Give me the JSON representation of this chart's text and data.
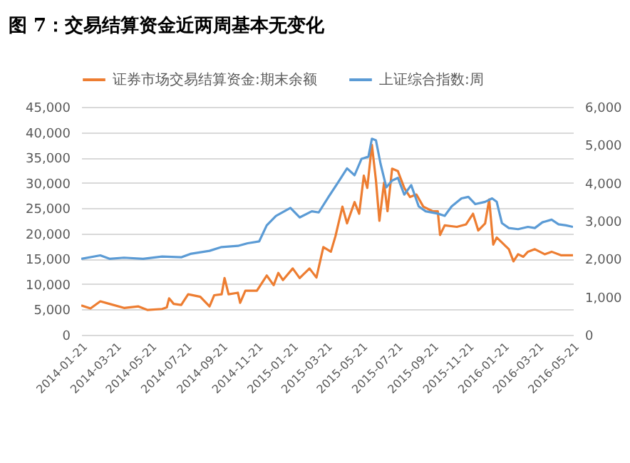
{
  "chart_data": {
    "type": "line",
    "title": "图 7：交易结算资金近两周基本无变化",
    "legend": "top",
    "grid": "y",
    "xlim": [
      "2014-01-21",
      "2016-05-21"
    ],
    "xticks": [
      "2014-01-21",
      "2014-03-21",
      "2014-05-21",
      "2014-07-21",
      "2014-09-21",
      "2014-11-21",
      "2015-01-21",
      "2015-03-21",
      "2015-05-21",
      "2015-07-21",
      "2015-09-21",
      "2015-11-21",
      "2016-01-21",
      "2016-03-21",
      "2016-05-21"
    ],
    "ylim": [
      0,
      45000
    ],
    "yticks": [
      0,
      {
        "value": 5000,
        "label": "5,000"
      },
      {
        "value": 10000,
        "label": "10,000"
      },
      {
        "value": 15000,
        "label": "15,000"
      },
      {
        "value": 20000,
        "label": "20,000"
      },
      {
        "value": 25000,
        "label": "25,000"
      },
      {
        "value": 30000,
        "label": "30,000"
      },
      {
        "value": 35000,
        "label": "35,000"
      },
      {
        "value": 40000,
        "label": "40,000"
      },
      {
        "value": 45000,
        "label": "45,000"
      }
    ],
    "y2lim": [
      0,
      6000
    ],
    "y2ticks": [
      0,
      {
        "value": 1000,
        "label": "1,000"
      },
      {
        "value": 2000,
        "label": "2,000"
      },
      {
        "value": 3000,
        "label": "3,000"
      },
      {
        "value": 4000,
        "label": "4,000"
      },
      {
        "value": 5000,
        "label": "5,000"
      },
      {
        "value": 6000,
        "label": "6,000"
      }
    ],
    "series": [
      {
        "name": "证券市场交易结算资金:期末余额",
        "color": "#ed7d31",
        "x": [
          "2014-01-21",
          "2014-02-06",
          "2014-02-23",
          "2014-03-11",
          "2014-04-05",
          "2014-04-30",
          "2014-05-16",
          "2014-06-10",
          "2014-06-18",
          "2014-06-22",
          "2014-06-30",
          "2014-07-13",
          "2014-07-25",
          "2014-08-15",
          "2014-08-31",
          "2014-09-08",
          "2014-09-21",
          "2014-09-26",
          "2014-10-03",
          "2014-10-19",
          "2014-10-23",
          "2014-11-01",
          "2014-11-21",
          "2014-12-08",
          "2014-12-20",
          "2014-12-28",
          "2015-01-05",
          "2015-01-22",
          "2015-02-03",
          "2015-02-20",
          "2015-03-04",
          "2015-03-16",
          "2015-03-29",
          "2015-04-06",
          "2015-04-18",
          "2015-04-26",
          "2015-05-09",
          "2015-05-17",
          "2015-05-25",
          "2015-05-31",
          "2015-06-08",
          "2015-06-15",
          "2015-06-21",
          "2015-06-29",
          "2015-07-05",
          "2015-07-13",
          "2015-07-23",
          "2015-08-03",
          "2015-08-13",
          "2015-08-24",
          "2015-09-05",
          "2015-09-21",
          "2015-09-30",
          "2015-10-04",
          "2015-10-12",
          "2015-11-02",
          "2015-11-18",
          "2015-11-30",
          "2015-12-09",
          "2015-12-21",
          "2015-12-28",
          "2016-01-04",
          "2016-01-10",
          "2016-01-31",
          "2016-02-08",
          "2016-02-16",
          "2016-02-25",
          "2016-03-04",
          "2016-03-16",
          "2016-04-02",
          "2016-04-14",
          "2016-04-30",
          "2016-05-21"
        ],
        "values": [
          5800,
          5200,
          6600,
          6100,
          5300,
          5600,
          4900,
          5100,
          5400,
          7200,
          6100,
          5900,
          8000,
          7500,
          5600,
          7800,
          8000,
          11200,
          8000,
          8300,
          6300,
          8700,
          8700,
          11700,
          9800,
          12200,
          10800,
          13100,
          11200,
          13100,
          11300,
          17300,
          16400,
          19500,
          25300,
          22000,
          26200,
          23900,
          31400,
          29000,
          37500,
          30500,
          22500,
          30000,
          24400,
          32800,
          32300,
          29000,
          27200,
          27700,
          25300,
          24400,
          24400,
          19700,
          21600,
          21300,
          21800,
          23900,
          20600,
          22000,
          26700,
          17800,
          19200,
          16900,
          14500,
          15900,
          15400,
          16400,
          16900,
          15900,
          16400,
          15700,
          15700
        ]
      },
      {
        "name": "上证综合指数:周",
        "color": "#5b9bd5",
        "axis": "y2",
        "x": [
          "2014-01-21",
          "2014-02-23",
          "2014-03-11",
          "2014-04-05",
          "2014-05-08",
          "2014-06-10",
          "2014-07-13",
          "2014-07-29",
          "2014-08-31",
          "2014-09-21",
          "2014-10-19",
          "2014-11-05",
          "2014-11-25",
          "2014-12-08",
          "2014-12-24",
          "2015-01-18",
          "2015-02-03",
          "2015-02-24",
          "2015-03-08",
          "2015-03-25",
          "2015-04-10",
          "2015-04-26",
          "2015-05-09",
          "2015-05-21",
          "2015-06-02",
          "2015-06-08",
          "2015-06-15",
          "2015-06-23",
          "2015-07-03",
          "2015-07-13",
          "2015-07-23",
          "2015-08-03",
          "2015-08-15",
          "2015-08-28",
          "2015-09-09",
          "2015-09-30",
          "2015-10-12",
          "2015-10-24",
          "2015-11-10",
          "2015-11-22",
          "2015-12-04",
          "2015-12-21",
          "2016-01-02",
          "2016-01-10",
          "2016-01-19",
          "2016-01-31",
          "2016-02-16",
          "2016-03-04",
          "2016-03-16",
          "2016-03-29",
          "2016-04-14",
          "2016-04-26",
          "2016-05-09",
          "2016-05-21"
        ],
        "values": [
          2000,
          2090,
          2000,
          2030,
          2000,
          2060,
          2040,
          2130,
          2210,
          2310,
          2340,
          2410,
          2460,
          2880,
          3130,
          3340,
          3090,
          3250,
          3220,
          3630,
          4000,
          4380,
          4200,
          4630,
          4690,
          5160,
          5120,
          4500,
          3880,
          4060,
          4130,
          3690,
          3940,
          3380,
          3250,
          3190,
          3130,
          3380,
          3590,
          3630,
          3440,
          3500,
          3590,
          3500,
          2940,
          2810,
          2780,
          2840,
          2810,
          2960,
          3030,
          2910,
          2880,
          2840
        ]
      }
    ]
  }
}
